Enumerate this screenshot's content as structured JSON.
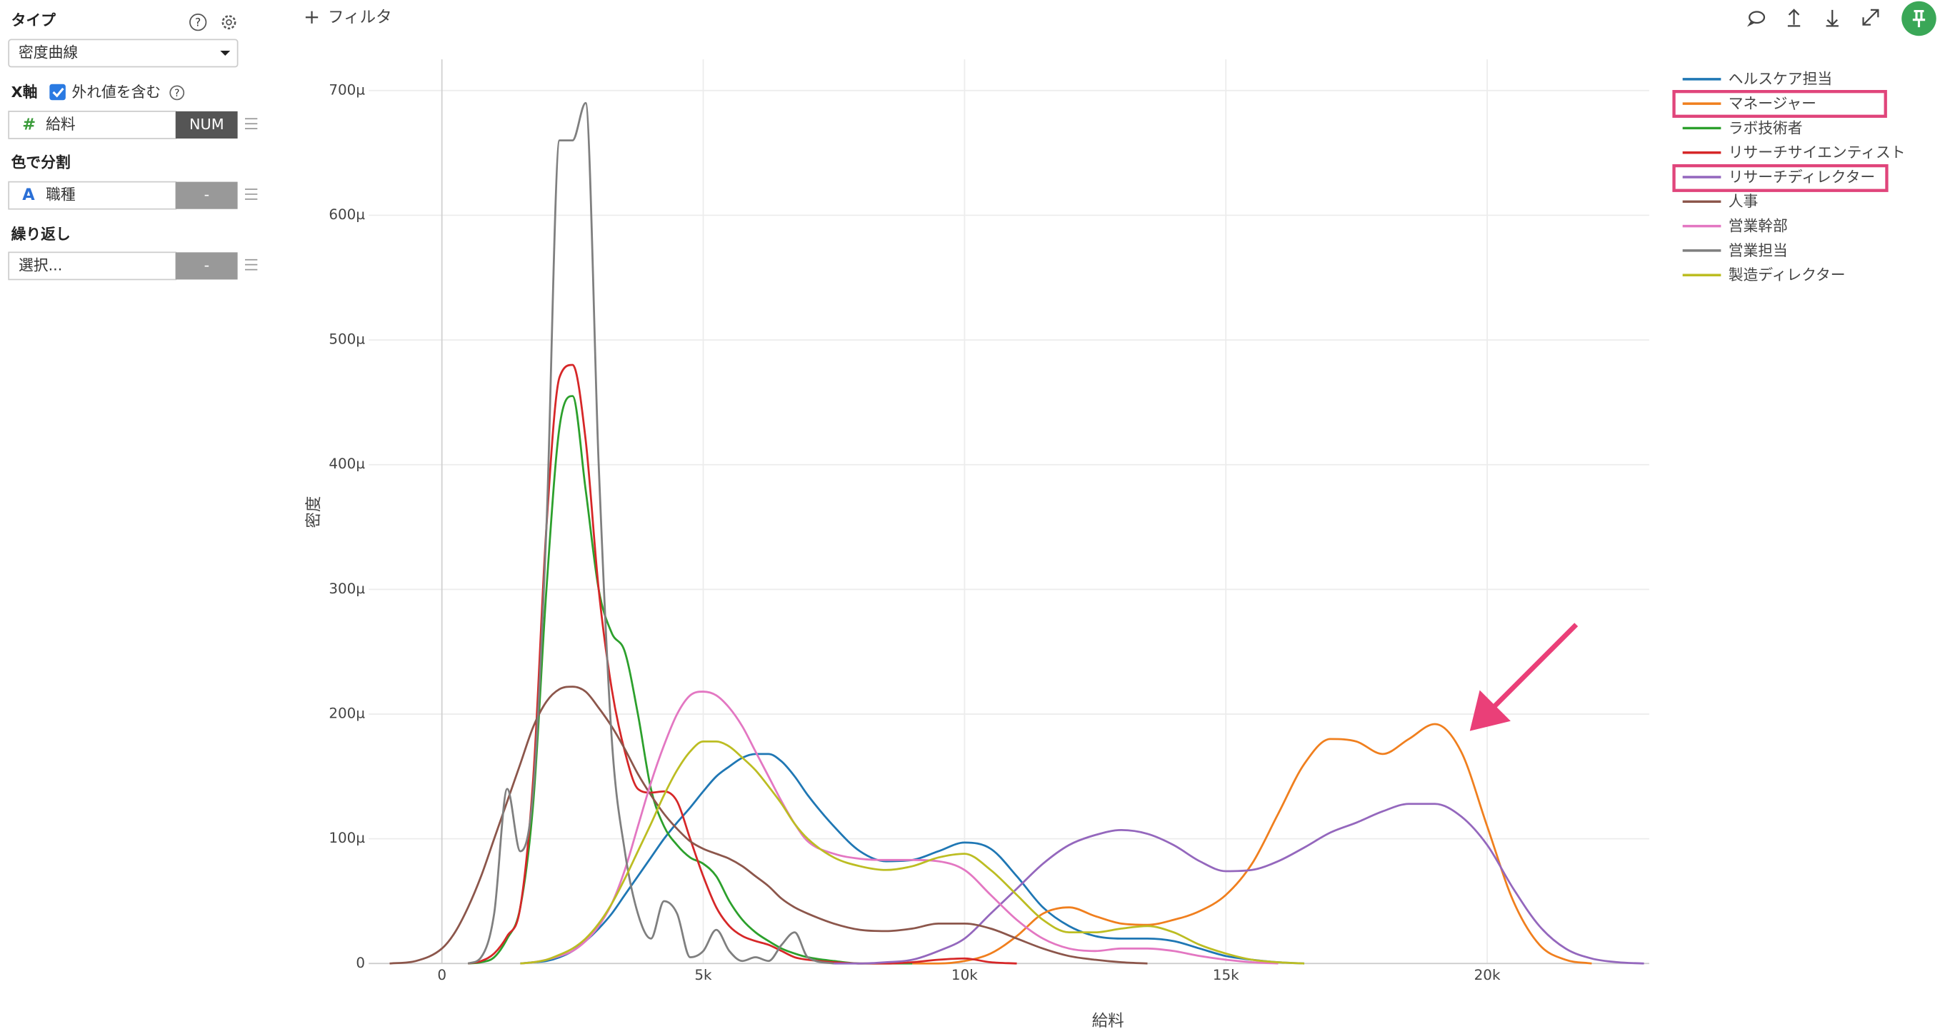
{
  "toolbar": {
    "filter": "フィルタ"
  },
  "sidebar": {
    "type_label": "タイプ",
    "type_value": "密度曲線",
    "x_axis_label": "X軸",
    "outliers": "外れ値を含む",
    "x_field": "給料",
    "x_field_kind": "NUM",
    "color_label": "色で分割",
    "color_field": "職種",
    "color_sort": "-",
    "repeat_label": "繰り返し",
    "repeat_field": "選択...",
    "repeat_sort": "-"
  },
  "chart_data": {
    "type": "line",
    "x_label": "給料",
    "y_label": "密度",
    "grid": true,
    "legend": "top-right",
    "xlim": [
      -1400,
      23100
    ],
    "ylim": [
      0,
      725
    ],
    "xticks": [
      0,
      {
        "value": 5000,
        "label": "5k"
      },
      {
        "value": 10000,
        "label": "10k"
      },
      {
        "value": 15000,
        "label": "15k"
      },
      {
        "value": 20000,
        "label": "20k"
      }
    ],
    "yticks": [
      0,
      {
        "value": 100,
        "label": "100µ"
      },
      {
        "value": 200,
        "label": "200µ"
      },
      {
        "value": 300,
        "label": "300µ"
      },
      {
        "value": 400,
        "label": "400µ"
      },
      {
        "value": 500,
        "label": "500µ"
      },
      {
        "value": 600,
        "label": "600µ"
      },
      {
        "value": 700,
        "label": "700µ"
      }
    ],
    "x": [
      -1000,
      -500,
      0,
      250,
      500,
      750,
      1000,
      1250,
      1500,
      1750,
      2000,
      2250,
      2500,
      2750,
      3000,
      3250,
      3500,
      3750,
      4000,
      4250,
      4500,
      4750,
      5000,
      5250,
      5500,
      5750,
      6000,
      6250,
      6500,
      6750,
      7000,
      7500,
      8000,
      8500,
      9000,
      9500,
      10000,
      10500,
      11000,
      11500,
      12000,
      12500,
      13000,
      13500,
      14000,
      14500,
      15000,
      15500,
      16000,
      16500,
      17000,
      17500,
      18000,
      18500,
      19000,
      19500,
      20000,
      20500,
      21000,
      21500,
      22000,
      22500,
      23000
    ],
    "series": [
      {
        "name": "ヘルスケア担当",
        "color": "#1f77b4",
        "values": [
          null,
          null,
          null,
          null,
          null,
          null,
          null,
          null,
          0,
          1,
          2,
          5,
          10,
          18,
          28,
          40,
          55,
          70,
          85,
          100,
          113,
          125,
          138,
          150,
          158,
          165,
          168,
          168,
          162,
          150,
          135,
          110,
          90,
          82,
          83,
          90,
          97,
          92,
          70,
          45,
          30,
          22,
          20,
          20,
          18,
          12,
          6,
          3,
          1,
          0,
          null,
          null,
          null,
          null,
          null,
          null,
          null,
          null,
          null,
          null,
          null,
          null,
          null
        ]
      },
      {
        "name": "マネージャー",
        "color": "#f07f1e",
        "values": [
          null,
          null,
          null,
          null,
          null,
          null,
          null,
          null,
          null,
          null,
          null,
          null,
          null,
          null,
          null,
          null,
          null,
          null,
          null,
          null,
          null,
          null,
          null,
          null,
          null,
          null,
          null,
          null,
          null,
          null,
          null,
          null,
          null,
          null,
          0,
          0,
          2,
          8,
          22,
          40,
          45,
          38,
          32,
          31,
          35,
          42,
          55,
          80,
          120,
          160,
          180,
          178,
          168,
          180,
          192,
          170,
          110,
          50,
          15,
          3,
          0,
          null,
          null
        ]
      },
      {
        "name": "ラボ技術者",
        "color": "#2ca02c",
        "values": [
          null,
          null,
          null,
          null,
          0,
          1,
          5,
          20,
          45,
          130,
          300,
          430,
          455,
          380,
          300,
          265,
          250,
          200,
          140,
          110,
          95,
          85,
          80,
          70,
          50,
          35,
          25,
          18,
          12,
          8,
          5,
          2,
          0,
          0,
          0,
          null,
          null,
          null,
          null,
          null,
          null,
          null,
          null,
          null,
          null,
          null,
          null,
          null,
          null,
          null,
          null,
          null,
          null,
          null,
          null,
          null,
          null,
          null,
          null,
          null,
          null,
          null,
          null
        ]
      },
      {
        "name": "リサーチサイエンティスト",
        "color": "#d62728",
        "values": [
          null,
          null,
          null,
          null,
          0,
          2,
          8,
          22,
          45,
          150,
          350,
          470,
          480,
          420,
          300,
          220,
          170,
          140,
          137,
          138,
          130,
          100,
          70,
          45,
          30,
          22,
          18,
          15,
          10,
          5,
          3,
          1,
          0,
          0,
          1,
          3,
          4,
          1,
          0,
          null,
          null,
          null,
          null,
          null,
          null,
          null,
          null,
          null,
          null,
          null,
          null,
          null,
          null,
          null,
          null,
          null,
          null,
          null,
          null,
          null,
          null,
          null,
          null
        ]
      },
      {
        "name": "リサーチディレクター",
        "color": "#9467bd",
        "values": [
          null,
          null,
          null,
          null,
          null,
          null,
          null,
          null,
          null,
          null,
          null,
          null,
          null,
          null,
          null,
          null,
          null,
          null,
          null,
          null,
          null,
          null,
          null,
          null,
          null,
          null,
          null,
          null,
          null,
          null,
          null,
          0,
          0,
          1,
          3,
          10,
          20,
          40,
          60,
          80,
          95,
          103,
          107,
          104,
          95,
          82,
          74,
          75,
          82,
          93,
          105,
          113,
          122,
          128,
          128,
          118,
          95,
          60,
          30,
          12,
          4,
          1,
          0
        ]
      },
      {
        "name": "人事",
        "color": "#8c564b",
        "values": [
          0,
          2,
          12,
          25,
          45,
          70,
          100,
          130,
          160,
          190,
          210,
          220,
          222,
          218,
          205,
          190,
          172,
          152,
          135,
          120,
          108,
          98,
          92,
          88,
          84,
          78,
          70,
          62,
          52,
          45,
          40,
          32,
          27,
          26,
          28,
          32,
          32,
          28,
          20,
          12,
          6,
          3,
          1,
          0,
          null,
          null,
          null,
          null,
          null,
          null,
          null,
          null,
          null,
          null,
          null,
          null,
          null,
          null,
          null,
          null,
          null,
          null,
          null
        ]
      },
      {
        "name": "営業幹部",
        "color": "#e377c2",
        "values": [
          null,
          null,
          null,
          null,
          null,
          null,
          null,
          null,
          0,
          1,
          3,
          6,
          10,
          18,
          30,
          48,
          75,
          110,
          145,
          175,
          200,
          215,
          218,
          215,
          205,
          190,
          170,
          150,
          130,
          112,
          98,
          88,
          84,
          83,
          83,
          82,
          75,
          55,
          35,
          20,
          12,
          10,
          12,
          12,
          10,
          6,
          3,
          1,
          0,
          null,
          null,
          null,
          null,
          null,
          null,
          null,
          null,
          null,
          null,
          null,
          null,
          null,
          null
        ]
      },
      {
        "name": "営業担当",
        "color": "#7f7f7f",
        "values": [
          null,
          null,
          null,
          null,
          0,
          5,
          40,
          140,
          90,
          140,
          350,
          660,
          660,
          690,
          400,
          180,
          90,
          40,
          20,
          50,
          40,
          5,
          10,
          27,
          10,
          2,
          5,
          2,
          15,
          25,
          5,
          0,
          null,
          null,
          null,
          null,
          null,
          null,
          null,
          null,
          null,
          null,
          null,
          null,
          null,
          null,
          null,
          null,
          null,
          null,
          null,
          null,
          null,
          null,
          null,
          null,
          null,
          null,
          null,
          null,
          null,
          null,
          null
        ]
      },
      {
        "name": "製造ディレクター",
        "color": "#bcbd22",
        "values": [
          null,
          null,
          null,
          null,
          null,
          null,
          null,
          null,
          0,
          1,
          3,
          7,
          12,
          20,
          32,
          48,
          68,
          90,
          112,
          135,
          155,
          170,
          178,
          178,
          174,
          165,
          155,
          142,
          128,
          112,
          100,
          85,
          78,
          75,
          78,
          85,
          88,
          75,
          55,
          35,
          25,
          25,
          28,
          30,
          25,
          15,
          8,
          3,
          1,
          0,
          null,
          null,
          null,
          null,
          null,
          null,
          null,
          null,
          null,
          null,
          null,
          null,
          null
        ]
      }
    ]
  }
}
